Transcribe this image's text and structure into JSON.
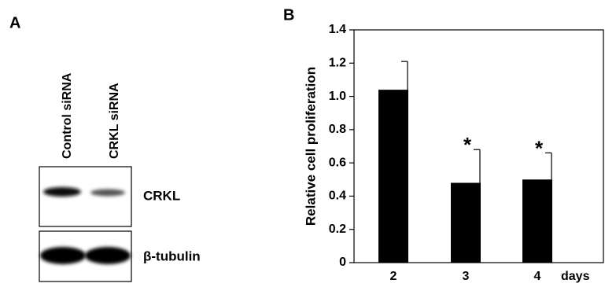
{
  "panel_a": {
    "label": "A",
    "lanes": [
      "Control siRNA",
      "CRKL siRNA"
    ],
    "blots": [
      "CRKL",
      "β-tubulin"
    ]
  },
  "chart_data": {
    "type": "bar",
    "panel_label": "B",
    "y_label": "Relative cell proliferation",
    "x_label": "days",
    "categories": [
      "2",
      "3",
      "4"
    ],
    "values": [
      1.04,
      0.48,
      0.5
    ],
    "errors": [
      0.17,
      0.2,
      0.16
    ],
    "color": "#000000",
    "ylim": [
      0,
      1.4
    ],
    "yticks": [
      0,
      0.2,
      0.4,
      0.6,
      0.8,
      {
        "value": 1,
        "label": "1.0"
      },
      1.2,
      1.4
    ],
    "annotations": [
      {
        "text": "*",
        "category": "3"
      },
      {
        "text": "*",
        "category": "4"
      }
    ]
  }
}
